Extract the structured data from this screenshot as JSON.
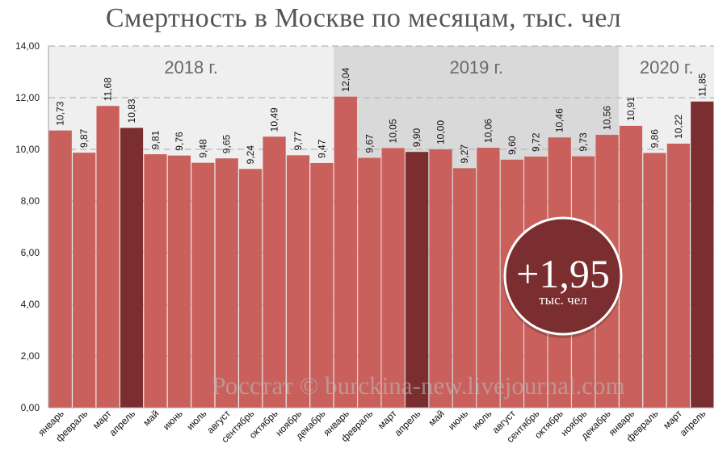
{
  "title": "Смертность в Москве по месяцам, тыс. чел",
  "watermark": "Росстат © burckina-new.livejournal.com",
  "badge": {
    "value": "+1,95",
    "unit": "тыс. чел"
  },
  "colors": {
    "bar": "#C9605C",
    "highlight": "#7B2E2F",
    "band_light": "#EFEFEF",
    "band_dark": "#D9D9D9",
    "grid": "#B8B8B8"
  },
  "chart_data": {
    "type": "bar",
    "ylim": [
      0,
      14
    ],
    "yticks": [
      "0,00",
      "2,00",
      "4,00",
      "6,00",
      "8,00",
      "10,00",
      "12,00",
      "14,00"
    ],
    "year_bands": [
      {
        "label": "2018 г.",
        "start": 0,
        "end": 11,
        "shade": "light"
      },
      {
        "label": "2019 г.",
        "start": 12,
        "end": 23,
        "shade": "dark"
      },
      {
        "label": "2020 г.",
        "start": 24,
        "end": 27,
        "shade": "light"
      }
    ],
    "categories": [
      "январь",
      "февраль",
      "март",
      "апрель",
      "май",
      "июнь",
      "июль",
      "август",
      "сентябрь",
      "октябрь",
      "ноябрь",
      "декабрь",
      "январь",
      "февраль",
      "март",
      "апрель",
      "май",
      "июнь",
      "июль",
      "август",
      "сентябрь",
      "октябрь",
      "ноябрь",
      "декабрь",
      "январь",
      "февраль",
      "март",
      "апрель"
    ],
    "values": [
      10.73,
      9.87,
      11.68,
      10.83,
      9.81,
      9.76,
      9.48,
      9.65,
      9.24,
      10.49,
      9.77,
      9.47,
      12.04,
      9.67,
      10.05,
      9.9,
      10.0,
      9.27,
      10.06,
      9.6,
      9.72,
      10.46,
      9.73,
      10.56,
      10.91,
      9.86,
      10.22,
      11.85
    ],
    "labels": [
      "10,73",
      "9,87",
      "11,68",
      "10,83",
      "9,81",
      "9,76",
      "9,48",
      "9,65",
      "9,24",
      "10,49",
      "9,77",
      "9,47",
      "12,04",
      "9,67",
      "10,05",
      "9,90",
      "10,00",
      "9,27",
      "10,06",
      "9,60",
      "9,72",
      "10,46",
      "9,73",
      "10,56",
      "10,91",
      "9,86",
      "10,22",
      "11,85"
    ],
    "highlighted": [
      3,
      15,
      27
    ]
  }
}
